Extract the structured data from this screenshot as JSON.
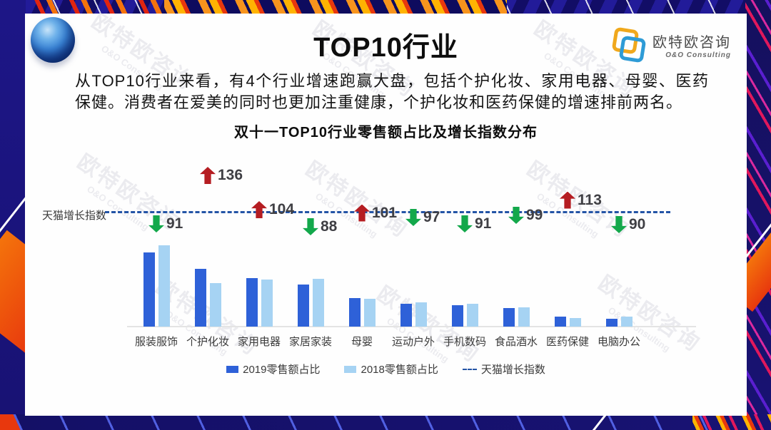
{
  "page": {
    "title": "TOP10行业",
    "summary": "从TOP10行业来看，有4个行业增速跑赢大盘，包括个护化妆、家用电器、母婴、医药保健。消费者在爱美的同时也更加注重健康，个护化妆和医药保健的增速排前两名。"
  },
  "brand": {
    "name": "欧特欧咨询",
    "subtitle": "O&O Consulting"
  },
  "watermark": {
    "cn": "欧特欧咨询",
    "en": "O&O Consulting"
  },
  "icons": {
    "globe": "globe-icon",
    "brand_logo": "overlapping-squares-logo-icon",
    "up": "arrow-up-icon",
    "down": "arrow-down-icon"
  },
  "colors": {
    "bar_2019": "#2e61d8",
    "bar_2018": "#a6d3f3",
    "index_line": "#2454a6",
    "arrow_up": "#b51d22",
    "arrow_down": "#13a84b",
    "frame_navy": "#181273",
    "frame_orange": "#f4730c",
    "frame_red": "#e02511",
    "frame_magenta": "#e0185c"
  },
  "chart_data": {
    "type": "bar",
    "title": "双十一TOP10行业零售额占比及增长指数分布",
    "categories": [
      "服装服饰",
      "个护化妆",
      "家用电器",
      "家居家装",
      "母婴",
      "运动户外",
      "手机数码",
      "食品酒水",
      "医药保健",
      "电脑办公"
    ],
    "series": [
      {
        "name": "2019零售额占比",
        "color": "#2e61d8",
        "values": [
          20.0,
          15.6,
          13.1,
          11.3,
          7.7,
          6.2,
          5.8,
          5.0,
          2.7,
          2.1
        ]
      },
      {
        "name": "2018零售额占比",
        "color": "#a6d3f3",
        "values": [
          21.9,
          11.7,
          12.7,
          12.9,
          7.5,
          6.5,
          6.2,
          5.2,
          2.3,
          2.7
        ]
      }
    ],
    "values_are_estimates": true,
    "index_series": {
      "name": "天猫增长指数",
      "baseline": 100,
      "values": [
        91,
        136,
        104,
        88,
        101,
        97,
        91,
        99,
        113,
        90
      ],
      "up_color": "#b51d22",
      "down_color": "#13a84b",
      "line_color": "#2454a6",
      "line_style": "dashed"
    },
    "xlabel": "",
    "ylabel": "",
    "value_axis_visible": false,
    "grid": false,
    "legend": [
      {
        "label": "2019零售额占比",
        "marker": "square",
        "color": "#2e61d8"
      },
      {
        "label": "2018零售额占比",
        "marker": "square",
        "color": "#a6d3f3"
      },
      {
        "label": "天猫增长指数",
        "marker": "dashed-line",
        "color": "#2454a6"
      }
    ],
    "legend_position": "bottom"
  }
}
